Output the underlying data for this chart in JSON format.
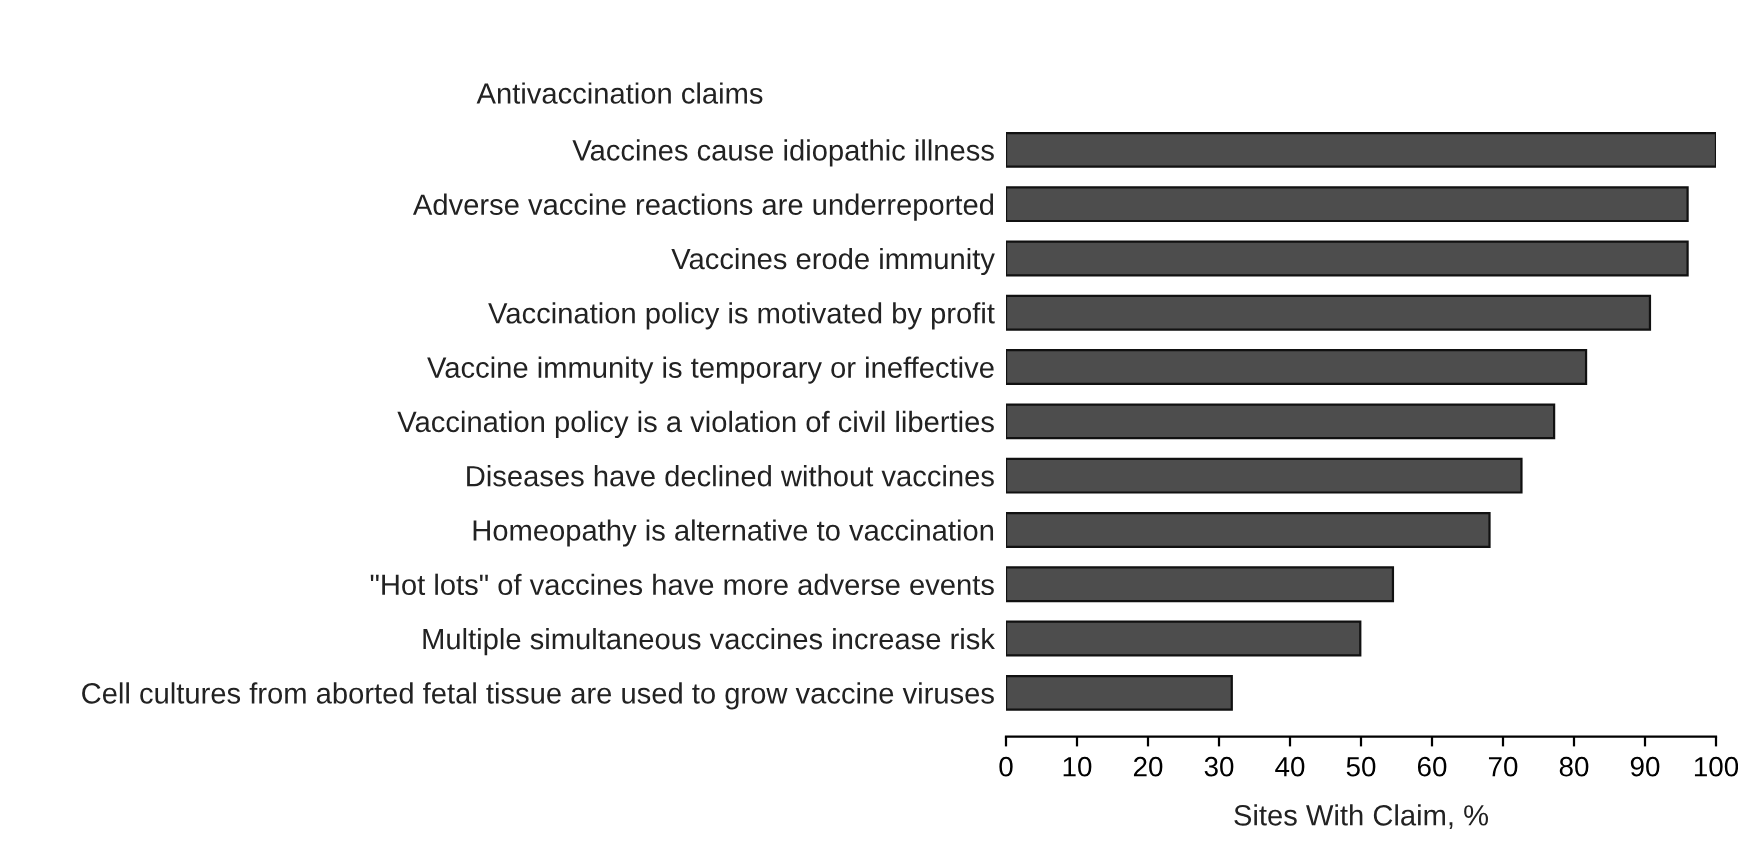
{
  "chart_data": {
    "type": "bar",
    "orientation": "horizontal",
    "title": "Antivaccination claims",
    "xlabel": "Sites With Claim, %",
    "categories": [
      "Vaccines cause idiopathic illness",
      "Adverse vaccine reactions are underreported",
      "Vaccines erode immunity",
      "Vaccination policy is motivated by profit",
      "Vaccine immunity is temporary or ineffective",
      "Vaccination policy is a violation of civil liberties",
      "Diseases have declined without vaccines",
      "Homeopathy is alternative to vaccination",
      "\"Hot lots\" of vaccines have more adverse events",
      "Multiple simultaneous vaccines increase risk",
      "Cell cultures from aborted fetal tissue are used to grow vaccine viruses"
    ],
    "values": [
      100,
      96,
      96,
      90.7,
      81.7,
      77.2,
      72.6,
      68.1,
      54.5,
      49.9,
      31.8
    ],
    "color": "#4d4d4d",
    "xlim": [
      0,
      100
    ],
    "xticks": [
      0,
      10,
      20,
      30,
      40,
      50,
      60,
      70,
      80,
      90,
      100
    ],
    "grid": false,
    "legend": false
  }
}
